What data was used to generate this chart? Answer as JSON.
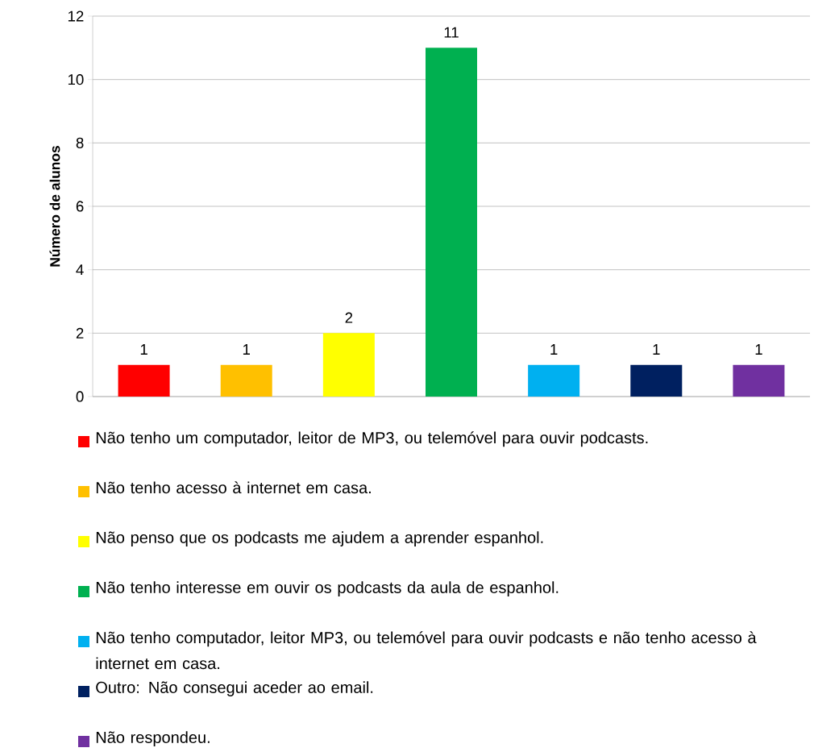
{
  "chart_data": {
    "type": "bar",
    "ylabel": "Número de alunos",
    "categories": [
      null,
      null,
      null,
      null,
      null,
      null,
      null
    ],
    "series": [
      {
        "name": "Não tenho um computador, leitor de MP3, ou telemóvel para ouvir podcasts.",
        "color": "#ff0000",
        "values": [
          1,
          null,
          null,
          null,
          null,
          null,
          null
        ]
      },
      {
        "name": "Não tenho acesso à internet em casa.",
        "color": "#ffc000",
        "values": [
          null,
          1,
          null,
          null,
          null,
          null,
          null
        ]
      },
      {
        "name": "Não penso que os podcasts me ajudem a aprender espanhol.",
        "color": "#ffff00",
        "values": [
          null,
          null,
          2,
          null,
          null,
          null,
          null
        ]
      },
      {
        "name": "Não tenho interesse em ouvir os podcasts da aula de espanhol.",
        "color": "#00b050",
        "values": [
          null,
          null,
          null,
          11,
          null,
          null,
          null
        ]
      },
      {
        "name": "Não tenho computador, leitor MP3, ou telemóvel para ouvir podcasts e não tenho acesso à internet em casa.",
        "color": "#00b0f0",
        "values": [
          null,
          null,
          null,
          null,
          1,
          null,
          null
        ]
      },
      {
        "name": "Outro: Não consegui aceder ao email.",
        "color": "#002060",
        "values": [
          null,
          null,
          null,
          null,
          null,
          1,
          null
        ]
      },
      {
        "name": "Não respondeu.",
        "color": "#7030a0",
        "values": [
          null,
          null,
          null,
          null,
          null,
          null,
          1
        ]
      }
    ],
    "ylim": [
      0,
      12
    ],
    "yticks": [
      0,
      2,
      4,
      6,
      8,
      10,
      12
    ],
    "grid": "y",
    "legend": "bottom",
    "data_labels": true
  }
}
